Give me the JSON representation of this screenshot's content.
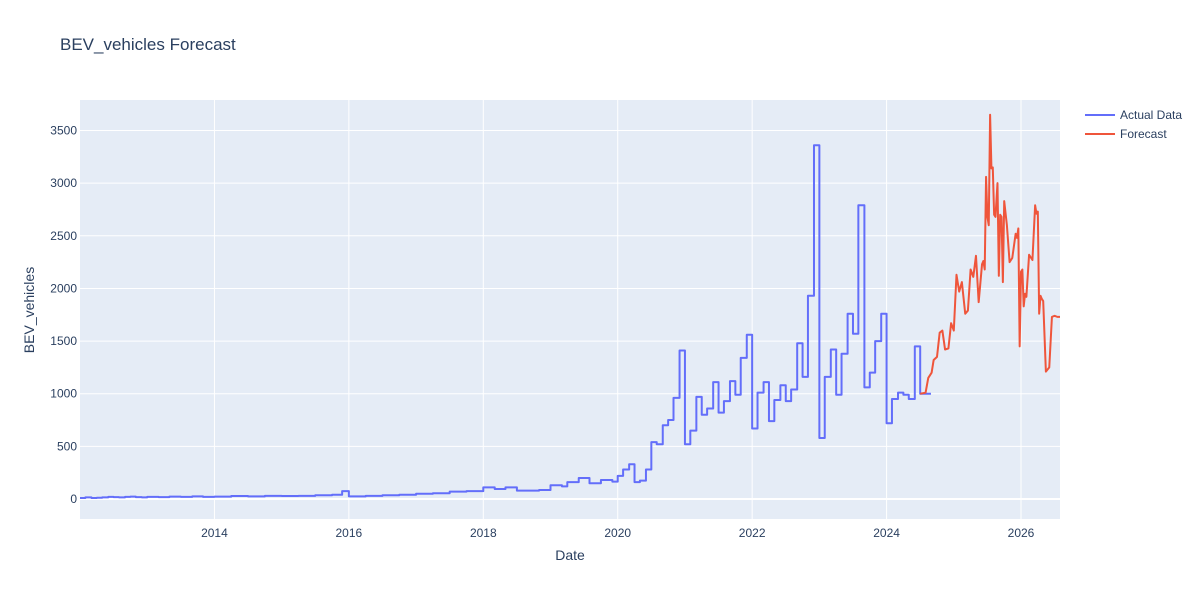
{
  "chart_data": {
    "type": "line",
    "title": "BEV_vehicles Forecast",
    "xlabel": "Date",
    "ylabel": "BEV_vehicles",
    "xlim": [
      2012.0,
      2026.58
    ],
    "ylim": [
      -190,
      3790
    ],
    "x_ticks": [
      2014,
      2016,
      2018,
      2020,
      2022,
      2024,
      2026
    ],
    "x_tick_labels": [
      "2014",
      "2016",
      "2018",
      "2020",
      "2022",
      "2024",
      "2026"
    ],
    "y_ticks": [
      0,
      500,
      1000,
      1500,
      2000,
      2500,
      3000,
      3500
    ],
    "y_tick_labels": [
      "0",
      "500",
      "1000",
      "1500",
      "2000",
      "2500",
      "3000",
      "3500"
    ],
    "legend_position": "top-right",
    "colors": {
      "plot_bg": "#e5ecf6",
      "grid": "#ffffff",
      "actual": "#636efa",
      "forecast": "#ef553b"
    },
    "series": [
      {
        "name": "Actual Data",
        "shape": "step",
        "x": [
          2012.0,
          2012.08,
          2012.17,
          2012.25,
          2012.33,
          2012.42,
          2012.5,
          2012.58,
          2012.67,
          2012.75,
          2012.83,
          2012.92,
          2013.0,
          2013.17,
          2013.33,
          2013.5,
          2013.67,
          2013.83,
          2014.0,
          2014.25,
          2014.5,
          2014.75,
          2015.0,
          2015.25,
          2015.5,
          2015.75,
          2015.9,
          2016.0,
          2016.25,
          2016.5,
          2016.75,
          2017.0,
          2017.25,
          2017.5,
          2017.75,
          2018.0,
          2018.17,
          2018.33,
          2018.5,
          2018.75,
          2018.83,
          2019.0,
          2019.17,
          2019.25,
          2019.42,
          2019.58,
          2019.75,
          2019.92,
          2020.0,
          2020.08,
          2020.17,
          2020.25,
          2020.33,
          2020.42,
          2020.5,
          2020.58,
          2020.67,
          2020.75,
          2020.83,
          2020.92,
          2021.0,
          2021.08,
          2021.17,
          2021.25,
          2021.33,
          2021.42,
          2021.5,
          2021.58,
          2021.67,
          2021.75,
          2021.83,
          2021.92,
          2022.0,
          2022.08,
          2022.17,
          2022.25,
          2022.33,
          2022.42,
          2022.5,
          2022.58,
          2022.67,
          2022.75,
          2022.83,
          2022.92,
          2023.0,
          2023.08,
          2023.17,
          2023.25,
          2023.33,
          2023.42,
          2023.5,
          2023.58,
          2023.67,
          2023.75,
          2023.83,
          2023.92,
          2024.0,
          2024.08,
          2024.17,
          2024.25,
          2024.33,
          2024.42,
          2024.5,
          2024.58
        ],
        "y": [
          10,
          15,
          10,
          12,
          15,
          20,
          18,
          15,
          20,
          22,
          18,
          15,
          20,
          18,
          22,
          20,
          25,
          20,
          22,
          28,
          25,
          30,
          28,
          30,
          35,
          40,
          75,
          25,
          30,
          35,
          40,
          50,
          55,
          70,
          75,
          110,
          95,
          110,
          80,
          80,
          85,
          130,
          120,
          160,
          200,
          150,
          180,
          165,
          220,
          280,
          330,
          160,
          175,
          280,
          540,
          520,
          700,
          750,
          960,
          1410,
          520,
          650,
          970,
          800,
          860,
          1110,
          820,
          930,
          1120,
          990,
          1340,
          1560,
          670,
          1010,
          1110,
          740,
          940,
          1080,
          930,
          1040,
          1480,
          1160,
          1930,
          3360,
          580,
          1160,
          1420,
          990,
          1380,
          1760,
          1570,
          2790,
          1060,
          1200,
          1500,
          1760,
          720,
          950,
          1010,
          990,
          950,
          1450,
          1000,
          1000
        ]
      },
      {
        "name": "Forecast",
        "shape": "line",
        "x": [
          2024.5,
          2024.58,
          2024.62,
          2024.67,
          2024.7,
          2024.75,
          2024.79,
          2024.83,
          2024.87,
          2024.92,
          2024.96,
          2025.0,
          2025.04,
          2025.08,
          2025.12,
          2025.17,
          2025.21,
          2025.25,
          2025.29,
          2025.33,
          2025.37,
          2025.42,
          2025.44,
          2025.46,
          2025.48,
          2025.5,
          2025.52,
          2025.54,
          2025.56,
          2025.58,
          2025.6,
          2025.62,
          2025.65,
          2025.67,
          2025.69,
          2025.71,
          2025.73,
          2025.75,
          2025.79,
          2025.83,
          2025.87,
          2025.92,
          2025.94,
          2025.96,
          2025.98,
          2026.0,
          2026.02,
          2026.04,
          2026.06,
          2026.08,
          2026.12,
          2026.17,
          2026.21,
          2026.23,
          2026.25,
          2026.27,
          2026.29,
          2026.31,
          2026.33,
          2026.37,
          2026.42,
          2026.46,
          2026.5,
          2026.54,
          2026.58
        ],
        "y": [
          1000,
          1010,
          1150,
          1200,
          1320,
          1350,
          1580,
          1600,
          1420,
          1430,
          1670,
          1600,
          2130,
          1970,
          2060,
          1760,
          1790,
          2180,
          2110,
          2310,
          1870,
          2230,
          2260,
          2180,
          3060,
          2680,
          2600,
          3650,
          3140,
          3150,
          2700,
          2680,
          3000,
          2120,
          2700,
          2680,
          2060,
          2830,
          2600,
          2250,
          2290,
          2520,
          2480,
          2570,
          1450,
          2160,
          2180,
          1830,
          1950,
          1920,
          2320,
          2270,
          2790,
          2710,
          2730,
          1760,
          1930,
          1900,
          1880,
          1210,
          1250,
          1730,
          1740,
          1730,
          1730
        ]
      }
    ]
  }
}
